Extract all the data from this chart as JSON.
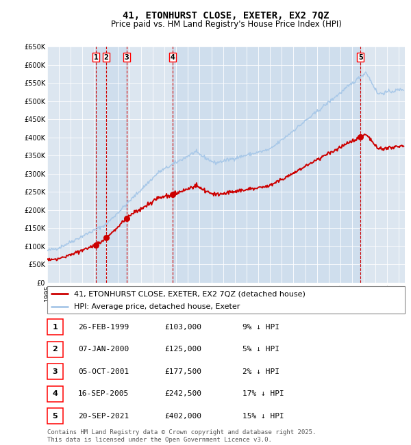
{
  "title": "41, ETONHURST CLOSE, EXETER, EX2 7QZ",
  "subtitle": "Price paid vs. HM Land Registry's House Price Index (HPI)",
  "background_color": "#ffffff",
  "plot_bg_color": "#dce6f0",
  "grid_color": "#ffffff",
  "hpi_color": "#a8c8e8",
  "price_color": "#cc0000",
  "sale_marker_color": "#cc0000",
  "dashed_line_color": "#cc0000",
  "ylim": [
    0,
    650000
  ],
  "yticks": [
    0,
    50000,
    100000,
    150000,
    200000,
    250000,
    300000,
    350000,
    400000,
    450000,
    500000,
    550000,
    600000,
    650000
  ],
  "ytick_labels": [
    "£0",
    "£50K",
    "£100K",
    "£150K",
    "£200K",
    "£250K",
    "£300K",
    "£350K",
    "£400K",
    "£450K",
    "£500K",
    "£550K",
    "£600K",
    "£650K"
  ],
  "xlim_start": 1995.0,
  "xlim_end": 2025.5,
  "sale_dates": [
    1999.15,
    2000.02,
    2001.76,
    2005.71,
    2021.72
  ],
  "sale_prices": [
    103000,
    125000,
    177500,
    242500,
    402000
  ],
  "sale_labels": [
    "1",
    "2",
    "3",
    "4",
    "5"
  ],
  "shade_ranges": [
    [
      1999.15,
      2000.02
    ],
    [
      2000.02,
      2001.76
    ],
    [
      2005.71,
      2021.72
    ]
  ],
  "legend_price_label": "41, ETONHURST CLOSE, EXETER, EX2 7QZ (detached house)",
  "legend_hpi_label": "HPI: Average price, detached house, Exeter",
  "table_rows": [
    [
      "1",
      "26-FEB-1999",
      "£103,000",
      "9% ↓ HPI"
    ],
    [
      "2",
      "07-JAN-2000",
      "£125,000",
      "5% ↓ HPI"
    ],
    [
      "3",
      "05-OCT-2001",
      "£177,500",
      "2% ↓ HPI"
    ],
    [
      "4",
      "16-SEP-2005",
      "£242,500",
      "17% ↓ HPI"
    ],
    [
      "5",
      "20-SEP-2021",
      "£402,000",
      "15% ↓ HPI"
    ]
  ],
  "footer": "Contains HM Land Registry data © Crown copyright and database right 2025.\nThis data is licensed under the Open Government Licence v3.0.",
  "title_fontsize": 10,
  "subtitle_fontsize": 8.5,
  "tick_fontsize": 7,
  "legend_fontsize": 8,
  "table_fontsize": 8,
  "footer_fontsize": 6.5
}
